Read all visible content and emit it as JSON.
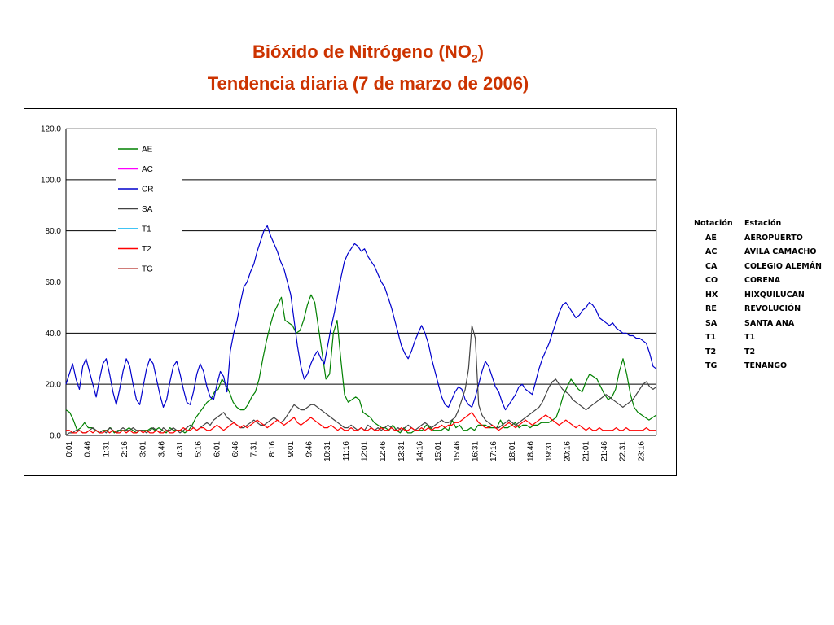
{
  "title": {
    "line1_prefix": "Bióxido de Nitrógeno (NO",
    "line1_sub": "2",
    "line1_suffix": ")",
    "line2": "Tendencia diaria (7 de marzo de 2006)"
  },
  "chart_data": {
    "type": "line",
    "ylim": [
      0,
      120
    ],
    "yticks": [
      "0.0",
      "20.0",
      "40.0",
      "60.0",
      "80.0",
      "100.0",
      "120.0"
    ],
    "xticks": [
      "0:01",
      "0:46",
      "1:31",
      "2:16",
      "3:01",
      "3:46",
      "4:31",
      "5:16",
      "6:01",
      "6:46",
      "7:31",
      "8:16",
      "9:01",
      "9:46",
      "10:31",
      "11:16",
      "12:01",
      "12:46",
      "13:31",
      "14:16",
      "15:01",
      "15:46",
      "16:31",
      "17:16",
      "18:01",
      "18:46",
      "19:31",
      "20:16",
      "21:01",
      "21:46",
      "22:31",
      "23:16"
    ],
    "grid": "horizontal",
    "legend_position": "top-left",
    "series": [
      {
        "name": "AE",
        "color": "#008000",
        "values": [
          10,
          9,
          6,
          2,
          3,
          5,
          3,
          3,
          2,
          1,
          2,
          2,
          3,
          1,
          2,
          2,
          2,
          3,
          2,
          1,
          2,
          2,
          2,
          3,
          2,
          3,
          2,
          1,
          3,
          2,
          2,
          2,
          1,
          2,
          4,
          7,
          9,
          11,
          13,
          14,
          17,
          18,
          22,
          20,
          17,
          13,
          11,
          10,
          10,
          12,
          15,
          17,
          22,
          30,
          37,
          43,
          48,
          51,
          54,
          45,
          44,
          43,
          40,
          41,
          45,
          51,
          55,
          52,
          42,
          32,
          22,
          24,
          40,
          45,
          30,
          16,
          13,
          14,
          15,
          14,
          9,
          8,
          7,
          5,
          4,
          3,
          3,
          2,
          4,
          2,
          1,
          3,
          1,
          1,
          2,
          2,
          2,
          4,
          3,
          2,
          2,
          2,
          3,
          2,
          6,
          3,
          4,
          2,
          2,
          3,
          2,
          4,
          4,
          4,
          3,
          3,
          3,
          6,
          3,
          3,
          4,
          5,
          3,
          4,
          4,
          3,
          4,
          4,
          5,
          5,
          5,
          6,
          7,
          11,
          16,
          19,
          22,
          20,
          18,
          17,
          21,
          24,
          23,
          22,
          19,
          16,
          14,
          15,
          18,
          25,
          30,
          24,
          16,
          11,
          9,
          8,
          7,
          6,
          7,
          8
        ]
      },
      {
        "name": "AC",
        "color": "#ff00ff",
        "values": []
      },
      {
        "name": "CR",
        "color": "#0000cc",
        "values": [
          20,
          24,
          28,
          22,
          18,
          27,
          30,
          25,
          20,
          15,
          22,
          28,
          30,
          24,
          17,
          12,
          18,
          25,
          30,
          27,
          20,
          14,
          12,
          19,
          26,
          30,
          28,
          22,
          16,
          11,
          14,
          21,
          27,
          29,
          24,
          18,
          13,
          12,
          17,
          24,
          28,
          25,
          19,
          15,
          14,
          20,
          25,
          23,
          17,
          33,
          40,
          45,
          52,
          58,
          60,
          64,
          67,
          72,
          76,
          80,
          82,
          78,
          75,
          72,
          68,
          65,
          60,
          55,
          45,
          35,
          27,
          22,
          24,
          28,
          31,
          33,
          30,
          28,
          35,
          42,
          48,
          55,
          62,
          68,
          71,
          73,
          75,
          74,
          72,
          73,
          70,
          68,
          66,
          63,
          60,
          58,
          54,
          50,
          45,
          40,
          35,
          32,
          30,
          33,
          37,
          40,
          43,
          40,
          36,
          30,
          25,
          20,
          15,
          12,
          11,
          14,
          17,
          19,
          18,
          14,
          12,
          11,
          15,
          20,
          25,
          29,
          27,
          23,
          19,
          17,
          13,
          10,
          12,
          14,
          16,
          19,
          20,
          18,
          17,
          16,
          21,
          26,
          30,
          33,
          36,
          40,
          44,
          48,
          51,
          52,
          50,
          48,
          46,
          47,
          49,
          50,
          52,
          51,
          49,
          46,
          45,
          44,
          43,
          44,
          42,
          41,
          40,
          40,
          39,
          39,
          38,
          38,
          37,
          36,
          32,
          27,
          26
        ]
      },
      {
        "name": "SA",
        "color": "#444444",
        "values": [
          0,
          1,
          1,
          2,
          2,
          1,
          1,
          2,
          3,
          2,
          1,
          2,
          1,
          3,
          2,
          1,
          2,
          3,
          2,
          2,
          3,
          2,
          2,
          2,
          1,
          2,
          3,
          2,
          1,
          3,
          2,
          2,
          3,
          2,
          1,
          2,
          3,
          4,
          3,
          2,
          3,
          4,
          5,
          4,
          6,
          7,
          8,
          9,
          7,
          6,
          5,
          4,
          3,
          3,
          4,
          5,
          6,
          5,
          4,
          4,
          5,
          6,
          7,
          6,
          5,
          6,
          8,
          10,
          12,
          11,
          10,
          10,
          11,
          12,
          12,
          11,
          10,
          9,
          8,
          7,
          6,
          5,
          4,
          3,
          3,
          4,
          3,
          2,
          3,
          2,
          4,
          3,
          2,
          3,
          2,
          3,
          4,
          3,
          2,
          3,
          2,
          3,
          4,
          3,
          2,
          3,
          4,
          5,
          4,
          3,
          4,
          5,
          6,
          5,
          5,
          6,
          7,
          10,
          14,
          18,
          26,
          43,
          38,
          12,
          8,
          6,
          5,
          4,
          3,
          3,
          4,
          5,
          6,
          5,
          4,
          5,
          6,
          7,
          8,
          9,
          10,
          11,
          13,
          16,
          19,
          21,
          22,
          20,
          18,
          17,
          16,
          14,
          13,
          12,
          11,
          10,
          11,
          12,
          13,
          14,
          15,
          16,
          15,
          14,
          13,
          12,
          11,
          12,
          13,
          14,
          16,
          18,
          20,
          21,
          19,
          18,
          19
        ]
      },
      {
        "name": "T1",
        "color": "#00b0f0",
        "values": []
      },
      {
        "name": "T2",
        "color": "#ff0000",
        "values": [
          2,
          2,
          1,
          1,
          2,
          1,
          1,
          2,
          1,
          2,
          1,
          1,
          2,
          1,
          2,
          1,
          1,
          2,
          1,
          2,
          1,
          1,
          2,
          1,
          2,
          1,
          1,
          2,
          1,
          1,
          2,
          1,
          1,
          2,
          2,
          3,
          2,
          2,
          3,
          2,
          3,
          3,
          2,
          2,
          3,
          4,
          3,
          2,
          3,
          4,
          5,
          4,
          3,
          4,
          3,
          4,
          5,
          6,
          5,
          4,
          3,
          4,
          5,
          6,
          5,
          4,
          5,
          6,
          7,
          5,
          4,
          5,
          6,
          7,
          6,
          5,
          4,
          3,
          3,
          4,
          3,
          2,
          3,
          2,
          2,
          3,
          2,
          2,
          3,
          2,
          2,
          3,
          2,
          2,
          3,
          2,
          2,
          3,
          2,
          2,
          3,
          2,
          2,
          3,
          2,
          2,
          3,
          2,
          3,
          2,
          3,
          3,
          4,
          3,
          4,
          4,
          5,
          5,
          6,
          7,
          8,
          9,
          7,
          5,
          4,
          3,
          3,
          4,
          3,
          2,
          3,
          4,
          5,
          4,
          3,
          4,
          5,
          6,
          5,
          4,
          5,
          6,
          7,
          8,
          7,
          6,
          5,
          4,
          5,
          6,
          5,
          4,
          3,
          4,
          3,
          2,
          3,
          2,
          2,
          3,
          2,
          2,
          2,
          2,
          3,
          2,
          2,
          3,
          2,
          2,
          2,
          2,
          2,
          3,
          2,
          2,
          2
        ]
      },
      {
        "name": "TG",
        "color": "#c0504d",
        "values": []
      }
    ]
  },
  "stations": {
    "header": {
      "code": "Notación",
      "name": "Estación"
    },
    "rows": [
      {
        "code": "AE",
        "name": "AEROPUERTO"
      },
      {
        "code": "AC",
        "name": "ÁVILA CAMACHO"
      },
      {
        "code": "CA",
        "name": "COLEGIO ALEMÁN"
      },
      {
        "code": "CO",
        "name": "CORENA"
      },
      {
        "code": "HX",
        "name": "HIXQUILUCAN"
      },
      {
        "code": "RE",
        "name": "REVOLUCIÓN"
      },
      {
        "code": "SA",
        "name": "SANTA ANA"
      },
      {
        "code": "T1",
        "name": "T1"
      },
      {
        "code": "T2",
        "name": "T2"
      },
      {
        "code": "TG",
        "name": "TENANGO"
      }
    ]
  }
}
